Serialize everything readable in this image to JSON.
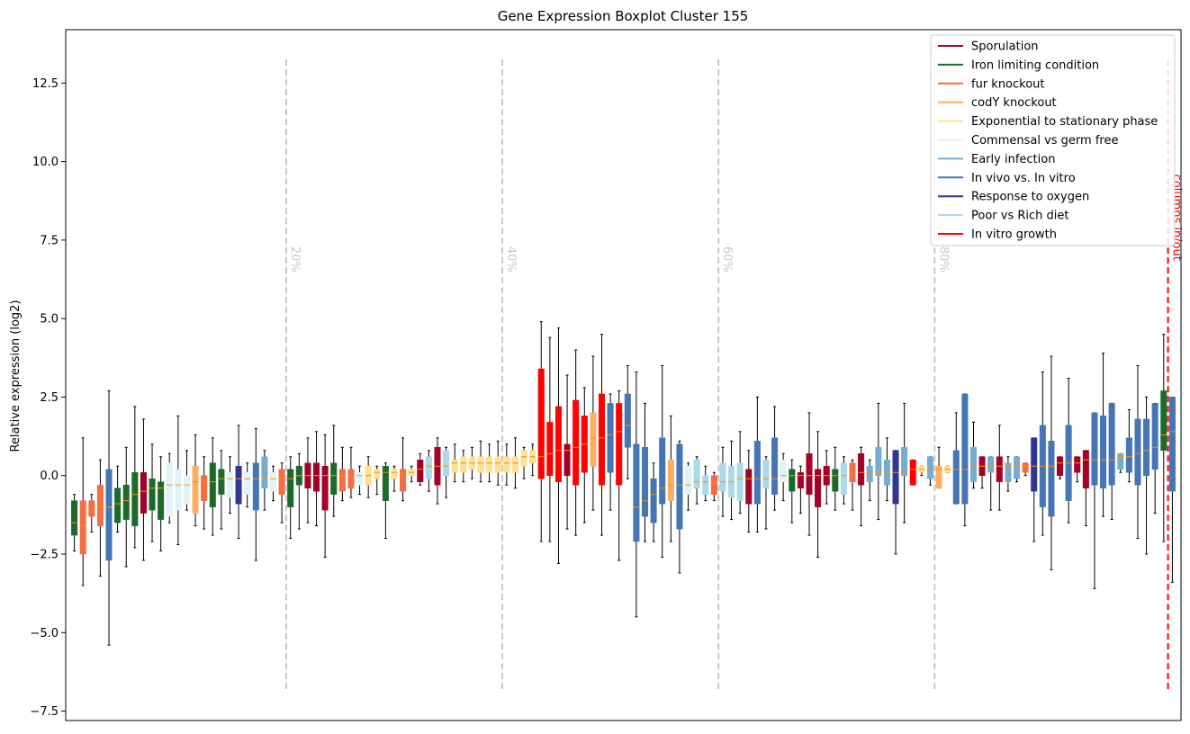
{
  "chart_data": {
    "type": "boxplot",
    "title": "Gene Expression Boxplot Cluster 155",
    "ylabel": "Relative expression (log2)",
    "xlabel": "",
    "ylim": [
      -7.8,
      14.2
    ],
    "yticks": [
      -7.5,
      -5.0,
      -2.5,
      0.0,
      2.5,
      5.0,
      7.5,
      10.0,
      12.5
    ],
    "ytick_labels": [
      "−7.5",
      "−5.0",
      "−2.5",
      "0.0",
      "2.5",
      "5.0",
      "7.5",
      "10.0",
      "12.5"
    ],
    "grid": false,
    "legend_position": "top-right",
    "legend": [
      {
        "name": "Sporulation",
        "color": "#a50026"
      },
      {
        "name": "Iron limiting condition",
        "color": "#1a6b2a"
      },
      {
        "name": "fur knockout",
        "color": "#f46d43"
      },
      {
        "name": "codY knockout",
        "color": "#fdae61"
      },
      {
        "name": "Exponential to stationary phase",
        "color": "#fee090"
      },
      {
        "name": "Commensal vs germ free",
        "color": "#e0f3f8"
      },
      {
        "name": "Early infection",
        "color": "#74add1"
      },
      {
        "name": "In vivo vs. In vitro",
        "color": "#4575b4"
      },
      {
        "name": "Response to oxygen",
        "color": "#313695"
      },
      {
        "name": "Poor vs Rich diet",
        "color": "#abd9e9"
      },
      {
        "name": "In vitro growth",
        "color": "#ff0000"
      }
    ],
    "percentile_lines": [
      {
        "label": "20%",
        "position": 25.5
      },
      {
        "label": "40%",
        "position": 50.5
      },
      {
        "label": "60%",
        "position": 75.5
      },
      {
        "label": "80%",
        "position": 100.5
      }
    ],
    "split_line": {
      "label": "columns in/out",
      "position": 127.5,
      "color": "#ff0000"
    },
    "median_color": "#ff8c00",
    "boxes": [
      {
        "c": "#1a6b2a",
        "min": -2.4,
        "q1": -1.9,
        "med": -1.5,
        "q3": -0.8,
        "max": -0.6
      },
      {
        "c": "#f46d43",
        "min": -3.5,
        "q1": -2.5,
        "med": -1.6,
        "q3": -0.8,
        "max": 1.2
      },
      {
        "c": "#f46d43",
        "min": -1.8,
        "q1": -1.3,
        "med": -1.1,
        "q3": -0.8,
        "max": -0.6
      },
      {
        "c": "#f46d43",
        "min": -3.2,
        "q1": -1.6,
        "med": -1.0,
        "q3": -0.3,
        "max": 0.5
      },
      {
        "c": "#4575b4",
        "min": -5.4,
        "q1": -2.7,
        "med": -1.0,
        "q3": 0.2,
        "max": 2.7
      },
      {
        "c": "#1a6b2a",
        "min": -1.8,
        "q1": -1.5,
        "med": -0.9,
        "q3": -0.4,
        "max": 0.3
      },
      {
        "c": "#1a6b2a",
        "min": -2.9,
        "q1": -1.4,
        "med": -0.8,
        "q3": -0.3,
        "max": 0.9
      },
      {
        "c": "#1a6b2a",
        "min": -2.3,
        "q1": -1.6,
        "med": -0.6,
        "q3": 0.1,
        "max": 2.2
      },
      {
        "c": "#a50026",
        "min": -2.7,
        "q1": -1.2,
        "med": -0.5,
        "q3": 0.1,
        "max": 1.8
      },
      {
        "c": "#1a6b2a",
        "min": -2.1,
        "q1": -1.1,
        "med": -0.4,
        "q3": -0.1,
        "max": 1.0
      },
      {
        "c": "#1a6b2a",
        "min": -2.4,
        "q1": -1.4,
        "med": -0.4,
        "q3": -0.2,
        "max": 0.6
      },
      {
        "c": "#e0f3f8",
        "min": -1.5,
        "q1": -1.3,
        "med": -0.3,
        "q3": 0.4,
        "max": 0.7
      },
      {
        "c": "#e0f3f8",
        "min": -2.2,
        "q1": -1.1,
        "med": -0.3,
        "q3": 0.2,
        "max": 1.9
      },
      {
        "c": "#e0f3f8",
        "min": -1.1,
        "q1": -0.9,
        "med": -0.3,
        "q3": 0.0,
        "max": 0.8
      },
      {
        "c": "#fdae61",
        "min": -1.6,
        "q1": -1.2,
        "med": -0.2,
        "q3": 0.3,
        "max": 1.3
      },
      {
        "c": "#f46d43",
        "min": -1.7,
        "q1": -0.8,
        "med": -0.2,
        "q3": 0.0,
        "max": 0.6
      },
      {
        "c": "#1a6b2a",
        "min": -1.9,
        "q1": -1.0,
        "med": -0.2,
        "q3": 0.4,
        "max": 1.2
      },
      {
        "c": "#1a6b2a",
        "min": -1.7,
        "q1": -0.6,
        "med": -0.1,
        "q3": 0.2,
        "max": 0.8
      },
      {
        "c": "#e0f3f8",
        "min": -1.2,
        "q1": -0.7,
        "med": -0.1,
        "q3": 0.1,
        "max": 0.6
      },
      {
        "c": "#313695",
        "min": -2.0,
        "q1": -0.9,
        "med": -0.1,
        "q3": 0.3,
        "max": 1.6
      },
      {
        "c": "#e0f3f8",
        "min": -1.0,
        "q1": -0.6,
        "med": -0.1,
        "q3": 0.1,
        "max": 0.4
      },
      {
        "c": "#4575b4",
        "min": -2.7,
        "q1": -1.1,
        "med": -0.1,
        "q3": 0.4,
        "max": 1.5
      },
      {
        "c": "#74add1",
        "min": -1.1,
        "q1": -0.4,
        "med": -0.1,
        "q3": 0.6,
        "max": 0.8
      },
      {
        "c": "#e0f3f8",
        "min": -0.8,
        "q1": -0.5,
        "med": -0.1,
        "q3": 0.1,
        "max": 0.3
      },
      {
        "c": "#f46d43",
        "min": -1.5,
        "q1": -0.6,
        "med": -0.1,
        "q3": 0.2,
        "max": 0.4
      },
      {
        "c": "#1a6b2a",
        "min": -2.0,
        "q1": -1.0,
        "med": -0.1,
        "q3": 0.2,
        "max": 0.6
      },
      {
        "c": "#1a6b2a",
        "min": -1.7,
        "q1": -0.3,
        "med": 0.0,
        "q3": 0.3,
        "max": 0.7
      },
      {
        "c": "#a50026",
        "min": -1.5,
        "q1": -0.4,
        "med": 0.0,
        "q3": 0.4,
        "max": 1.2
      },
      {
        "c": "#a50026",
        "min": -1.6,
        "q1": -0.5,
        "med": 0.0,
        "q3": 0.4,
        "max": 1.4
      },
      {
        "c": "#a50026",
        "min": -2.6,
        "q1": -1.1,
        "med": 0.0,
        "q3": 0.3,
        "max": 1.3
      },
      {
        "c": "#1a6b2a",
        "min": -1.3,
        "q1": -0.6,
        "med": 0.0,
        "q3": 0.4,
        "max": 1.6
      },
      {
        "c": "#f46d43",
        "min": -0.8,
        "q1": -0.5,
        "med": 0.0,
        "q3": 0.2,
        "max": 0.9
      },
      {
        "c": "#f46d43",
        "min": -0.7,
        "q1": -0.4,
        "med": 0.0,
        "q3": 0.2,
        "max": 0.9
      },
      {
        "c": "#e0f3f8",
        "min": -0.6,
        "q1": -0.3,
        "med": 0.0,
        "q3": 0.1,
        "max": 0.3
      },
      {
        "c": "#fee090",
        "min": -0.7,
        "q1": -0.3,
        "med": 0.0,
        "q3": 0.3,
        "max": 0.6
      },
      {
        "c": "#fee090",
        "min": -0.6,
        "q1": -0.1,
        "med": 0.1,
        "q3": 0.2,
        "max": 0.3
      },
      {
        "c": "#1a6b2a",
        "min": -2.0,
        "q1": -0.8,
        "med": 0.1,
        "q3": 0.3,
        "max": 0.4
      },
      {
        "c": "#fee090",
        "min": -0.5,
        "q1": -0.1,
        "med": 0.1,
        "q3": 0.2,
        "max": 0.3
      },
      {
        "c": "#f46d43",
        "min": -0.8,
        "q1": -0.5,
        "med": 0.1,
        "q3": 0.2,
        "max": 1.2
      },
      {
        "c": "#fee090",
        "min": -0.2,
        "q1": 0.0,
        "med": 0.1,
        "q3": 0.2,
        "max": 0.3
      },
      {
        "c": "#a50026",
        "min": -0.3,
        "q1": -0.2,
        "med": 0.2,
        "q3": 0.5,
        "max": 0.7
      },
      {
        "c": "#abd9e9",
        "min": -0.5,
        "q1": -0.1,
        "med": 0.3,
        "q3": 0.6,
        "max": 0.8
      },
      {
        "c": "#a50026",
        "min": -0.9,
        "q1": -0.3,
        "med": 0.3,
        "q3": 0.9,
        "max": 1.2
      },
      {
        "c": "#abd9e9",
        "min": -0.7,
        "q1": 0.0,
        "med": 0.3,
        "q3": 0.8,
        "max": 0.9
      },
      {
        "c": "#fee090",
        "min": -0.2,
        "q1": 0.1,
        "med": 0.4,
        "q3": 0.5,
        "max": 1.0
      },
      {
        "c": "#fee090",
        "min": -0.2,
        "q1": 0.1,
        "med": 0.4,
        "q3": 0.6,
        "max": 0.8
      },
      {
        "c": "#fee090",
        "min": -0.1,
        "q1": 0.2,
        "med": 0.4,
        "q3": 0.6,
        "max": 0.9
      },
      {
        "c": "#fee090",
        "min": -0.2,
        "q1": 0.1,
        "med": 0.4,
        "q3": 0.6,
        "max": 1.1
      },
      {
        "c": "#fee090",
        "min": -0.2,
        "q1": 0.1,
        "med": 0.4,
        "q3": 0.6,
        "max": 1.0
      },
      {
        "c": "#fee090",
        "min": -0.3,
        "q1": 0.1,
        "med": 0.4,
        "q3": 0.6,
        "max": 1.1
      },
      {
        "c": "#fee090",
        "min": -0.3,
        "q1": 0.1,
        "med": 0.4,
        "q3": 0.6,
        "max": 1.0
      },
      {
        "c": "#fee090",
        "min": -0.4,
        "q1": 0.1,
        "med": 0.4,
        "q3": 0.6,
        "max": 1.2
      },
      {
        "c": "#fee090",
        "min": -0.1,
        "q1": 0.3,
        "med": 0.6,
        "q3": 0.8,
        "max": 0.9
      },
      {
        "c": "#fee090",
        "min": 0.0,
        "q1": 0.4,
        "med": 0.6,
        "q3": 0.8,
        "max": 1.0
      },
      {
        "c": "#ff0000",
        "min": -2.1,
        "q1": -0.1,
        "med": 0.6,
        "q3": 3.4,
        "max": 4.9
      },
      {
        "c": "#ff0000",
        "min": -2.1,
        "q1": 0.0,
        "med": 0.7,
        "q3": 1.7,
        "max": 4.4
      },
      {
        "c": "#ff0000",
        "min": -2.8,
        "q1": -0.2,
        "med": 0.8,
        "q3": 2.2,
        "max": 4.7
      },
      {
        "c": "#a50026",
        "min": -1.7,
        "q1": 0.0,
        "med": 0.8,
        "q3": 1.0,
        "max": 3.2
      },
      {
        "c": "#ff0000",
        "min": -1.9,
        "q1": -0.3,
        "med": 0.9,
        "q3": 2.4,
        "max": 4.0
      },
      {
        "c": "#ff0000",
        "min": -1.5,
        "q1": 0.1,
        "med": 1.0,
        "q3": 1.9,
        "max": 2.8
      },
      {
        "c": "#fdae61",
        "min": -1.1,
        "q1": 0.3,
        "med": 1.2,
        "q3": 2.0,
        "max": 3.8
      },
      {
        "c": "#ff0000",
        "min": -1.9,
        "q1": -0.3,
        "med": 1.2,
        "q3": 2.6,
        "max": 4.5
      },
      {
        "c": "#4575b4",
        "min": -1.1,
        "q1": 0.1,
        "med": 1.3,
        "q3": 2.3,
        "max": 2.6
      },
      {
        "c": "#ff0000",
        "min": -2.7,
        "q1": -0.3,
        "med": 1.4,
        "q3": 2.3,
        "max": 2.7
      },
      {
        "c": "#4575b4",
        "min": -0.1,
        "q1": 0.9,
        "med": 1.6,
        "q3": 2.6,
        "max": 3.5
      },
      {
        "c": "#4575b4",
        "min": -4.5,
        "q1": -2.1,
        "med": -1.0,
        "q3": 1.0,
        "max": 3.3
      },
      {
        "c": "#4575b4",
        "min": -2.1,
        "q1": -1.3,
        "med": -0.8,
        "q3": 0.9,
        "max": 2.3
      },
      {
        "c": "#4575b4",
        "min": -2.1,
        "q1": -1.5,
        "med": -0.6,
        "q3": -0.1,
        "max": 0.4
      },
      {
        "c": "#4575b4",
        "min": -2.6,
        "q1": -0.9,
        "med": -0.4,
        "q3": 1.2,
        "max": 3.5
      },
      {
        "c": "#fdae61",
        "min": -2.1,
        "q1": -0.8,
        "med": -0.3,
        "q3": 0.5,
        "max": 1.9
      },
      {
        "c": "#4575b4",
        "min": -3.1,
        "q1": -1.7,
        "med": -0.3,
        "q3": 1.0,
        "max": 1.1
      },
      {
        "c": "#e0f3f8",
        "min": -1.1,
        "q1": -0.6,
        "med": -0.3,
        "q3": 0.3,
        "max": 0.4
      },
      {
        "c": "#abd9e9",
        "min": -0.9,
        "q1": -0.4,
        "med": -0.2,
        "q3": 0.5,
        "max": 0.6
      },
      {
        "c": "#abd9e9",
        "min": -0.8,
        "q1": -0.6,
        "med": -0.2,
        "q3": 0.0,
        "max": 0.3
      },
      {
        "c": "#f46d43",
        "min": -0.8,
        "q1": -0.6,
        "med": -0.2,
        "q3": 0.0,
        "max": 0.1
      },
      {
        "c": "#abd9e9",
        "min": -1.3,
        "q1": -0.5,
        "med": -0.2,
        "q3": 0.4,
        "max": 0.9
      },
      {
        "c": "#abd9e9",
        "min": -1.4,
        "q1": -0.7,
        "med": -0.2,
        "q3": 0.3,
        "max": 1.1
      },
      {
        "c": "#abd9e9",
        "min": -1.2,
        "q1": -0.8,
        "med": -0.1,
        "q3": 0.4,
        "max": 1.4
      },
      {
        "c": "#a50026",
        "min": -1.8,
        "q1": -0.9,
        "med": -0.1,
        "q3": 0.2,
        "max": 0.8
      },
      {
        "c": "#4575b4",
        "min": -1.8,
        "q1": -0.9,
        "med": -0.1,
        "q3": 1.1,
        "max": 2.5
      },
      {
        "c": "#abd9e9",
        "min": -1.7,
        "q1": -0.4,
        "med": -0.1,
        "q3": 0.5,
        "max": 0.6
      },
      {
        "c": "#4575b4",
        "min": -1.1,
        "q1": -0.6,
        "med": -0.1,
        "q3": 1.2,
        "max": 2.2
      },
      {
        "c": "#e0f3f8",
        "min": -0.8,
        "q1": -0.2,
        "med": 0.0,
        "q3": 0.5,
        "max": 0.7
      },
      {
        "c": "#1a6b2a",
        "min": -1.5,
        "q1": -0.5,
        "med": 0.0,
        "q3": 0.2,
        "max": 0.5
      },
      {
        "c": "#a50026",
        "min": -1.2,
        "q1": -0.4,
        "med": 0.0,
        "q3": 0.1,
        "max": 0.3
      },
      {
        "c": "#a50026",
        "min": -1.9,
        "q1": -0.6,
        "med": 0.0,
        "q3": 0.7,
        "max": 2.0
      },
      {
        "c": "#a50026",
        "min": -2.6,
        "q1": -1.0,
        "med": 0.0,
        "q3": 0.2,
        "max": 1.4
      },
      {
        "c": "#a50026",
        "min": -0.9,
        "q1": -0.3,
        "med": 0.0,
        "q3": 0.3,
        "max": 0.8
      },
      {
        "c": "#1a6b2a",
        "min": -1.1,
        "q1": -0.5,
        "med": 0.0,
        "q3": 0.2,
        "max": 0.9
      },
      {
        "c": "#abd9e9",
        "min": -0.9,
        "q1": -0.6,
        "med": 0.0,
        "q3": 0.4,
        "max": 0.6
      },
      {
        "c": "#f46d43",
        "min": -1.1,
        "q1": -0.2,
        "med": 0.1,
        "q3": 0.4,
        "max": 0.5
      },
      {
        "c": "#a50026",
        "min": -1.6,
        "q1": -0.3,
        "med": 0.1,
        "q3": 0.7,
        "max": 0.9
      },
      {
        "c": "#74add1",
        "min": -0.8,
        "q1": -0.2,
        "med": 0.1,
        "q3": 0.3,
        "max": 0.5
      },
      {
        "c": "#74add1",
        "min": -1.4,
        "q1": 0.0,
        "med": 0.1,
        "q3": 0.9,
        "max": 2.3
      },
      {
        "c": "#74add1",
        "min": -0.8,
        "q1": -0.3,
        "med": 0.1,
        "q3": 0.5,
        "max": 1.2
      },
      {
        "c": "#313695",
        "min": -2.5,
        "q1": -0.9,
        "med": 0.1,
        "q3": 0.8,
        "max": 0.8
      },
      {
        "c": "#74add1",
        "min": -1.5,
        "q1": 0.0,
        "med": 0.1,
        "q3": 0.9,
        "max": 2.3
      },
      {
        "c": "#ff0000",
        "min": -0.3,
        "q1": -0.3,
        "med": 0.2,
        "q3": 0.5,
        "max": 0.5
      },
      {
        "c": "#fee090",
        "min": 0.0,
        "q1": 0.1,
        "med": 0.2,
        "q3": 0.3,
        "max": 0.3
      },
      {
        "c": "#74add1",
        "min": -0.3,
        "q1": -0.1,
        "med": 0.2,
        "q3": 0.6,
        "max": 0.6
      },
      {
        "c": "#fdae61",
        "min": -0.4,
        "q1": -0.4,
        "med": 0.2,
        "q3": 0.3,
        "max": 0.9
      },
      {
        "c": "#fee090",
        "min": 0.1,
        "q1": 0.1,
        "med": 0.2,
        "q3": 0.3,
        "max": 0.3
      },
      {
        "c": "#4575b4",
        "min": -0.9,
        "q1": -0.9,
        "med": 0.2,
        "q3": 0.8,
        "max": 2.0
      },
      {
        "c": "#4575b4",
        "min": -1.6,
        "q1": -0.9,
        "med": 0.2,
        "q3": 2.6,
        "max": 2.6
      },
      {
        "c": "#74add1",
        "min": -0.4,
        "q1": -0.2,
        "med": 0.3,
        "q3": 0.9,
        "max": 1.7
      },
      {
        "c": "#a50026",
        "min": -0.4,
        "q1": 0.0,
        "med": 0.3,
        "q3": 0.6,
        "max": 0.6
      },
      {
        "c": "#74add1",
        "min": -1.1,
        "q1": 0.1,
        "med": 0.3,
        "q3": 0.6,
        "max": 0.6
      },
      {
        "c": "#a50026",
        "min": -1.1,
        "q1": -0.2,
        "med": 0.3,
        "q3": 0.6,
        "max": 1.6
      },
      {
        "c": "#74add1",
        "min": -0.5,
        "q1": -0.2,
        "med": 0.3,
        "q3": 0.4,
        "max": 0.6
      },
      {
        "c": "#74add1",
        "min": -0.2,
        "q1": -0.1,
        "med": 0.3,
        "q3": 0.6,
        "max": 0.6
      },
      {
        "c": "#f46d43",
        "min": 0.0,
        "q1": 0.1,
        "med": 0.3,
        "q3": 0.4,
        "max": 0.4
      },
      {
        "c": "#313695",
        "min": -2.1,
        "q1": -0.5,
        "med": 0.3,
        "q3": 1.2,
        "max": 1.2
      },
      {
        "c": "#4575b4",
        "min": -1.9,
        "q1": -1.0,
        "med": 0.3,
        "q3": 1.6,
        "max": 3.3
      },
      {
        "c": "#4575b4",
        "min": -3.0,
        "q1": -1.3,
        "med": 0.3,
        "q3": 1.1,
        "max": 3.8
      },
      {
        "c": "#a50026",
        "min": -0.1,
        "q1": 0.0,
        "med": 0.4,
        "q3": 0.6,
        "max": 0.6
      },
      {
        "c": "#4575b4",
        "min": -1.5,
        "q1": -0.8,
        "med": 0.4,
        "q3": 1.6,
        "max": 3.1
      },
      {
        "c": "#a50026",
        "min": -0.2,
        "q1": 0.1,
        "med": 0.4,
        "q3": 0.6,
        "max": 0.6
      },
      {
        "c": "#a50026",
        "min": -1.6,
        "q1": -0.4,
        "med": 0.5,
        "q3": 0.8,
        "max": 0.8
      },
      {
        "c": "#4575b4",
        "min": -3.6,
        "q1": -0.3,
        "med": 0.5,
        "q3": 2.0,
        "max": 2.0
      },
      {
        "c": "#4575b4",
        "min": -1.3,
        "q1": -0.4,
        "med": 0.5,
        "q3": 1.9,
        "max": 3.9
      },
      {
        "c": "#4575b4",
        "min": -1.4,
        "q1": -0.3,
        "med": 0.5,
        "q3": 2.3,
        "max": 2.3
      },
      {
        "c": "#74add1",
        "min": 0.1,
        "q1": 0.2,
        "med": 0.6,
        "q3": 0.7,
        "max": 0.7
      },
      {
        "c": "#4575b4",
        "min": -0.2,
        "q1": 0.1,
        "med": 0.6,
        "q3": 1.2,
        "max": 2.1
      },
      {
        "c": "#4575b4",
        "min": -2.0,
        "q1": -0.3,
        "med": 0.7,
        "q3": 1.8,
        "max": 3.5
      },
      {
        "c": "#4575b4",
        "min": -2.5,
        "q1": 0.0,
        "med": 0.8,
        "q3": 1.8,
        "max": 2.5
      },
      {
        "c": "#4575b4",
        "min": -1.2,
        "q1": 0.2,
        "med": 0.9,
        "q3": 2.3,
        "max": 2.3
      },
      {
        "c": "#1a6b2a",
        "min": -2.1,
        "q1": 0.8,
        "med": 1.3,
        "q3": 2.7,
        "max": 4.5
      },
      {
        "c": "#4575b4",
        "min": -3.4,
        "q1": -0.5,
        "med": 1.4,
        "q3": 2.5,
        "max": 2.5
      }
    ]
  }
}
